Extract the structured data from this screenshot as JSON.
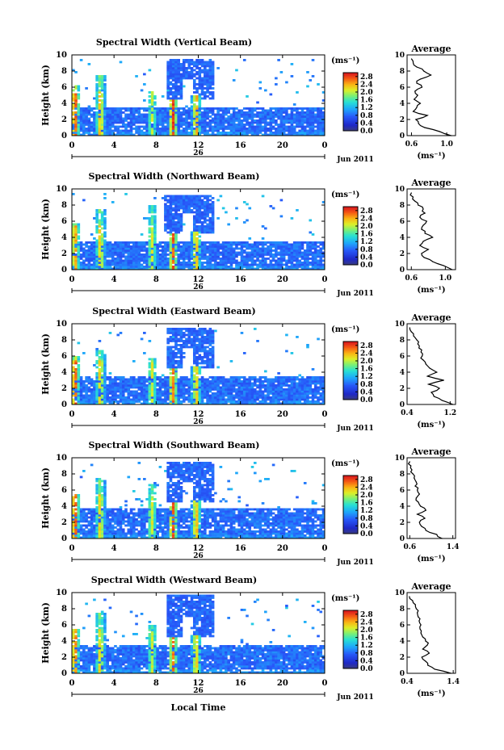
{
  "chart_data": [
    {
      "type": "heatmap",
      "title": "Spectral Width (Vertical Beam)",
      "ylabel": "Height (km)",
      "xticks": [
        "0",
        "4",
        "8",
        "12",
        "16",
        "20",
        "0"
      ],
      "yticks": [
        "0",
        "2",
        "4",
        "6",
        "8",
        "10"
      ],
      "day_label": "26",
      "date_label": "Jun 2011",
      "xlim": [
        0,
        24
      ],
      "ylim": [
        0,
        10
      ],
      "colorbar": {
        "unit": "(ms⁻¹)",
        "ticks": [
          "0.0",
          "0.4",
          "0.8",
          "1.2",
          "1.6",
          "2.0",
          "2.4",
          "2.8"
        ],
        "range": [
          0,
          3.0
        ]
      },
      "plumes": [
        {
          "x": 0.3,
          "top": 6.2,
          "hot": 1.0
        },
        {
          "x": 2.7,
          "top": 7.6,
          "hot": 0.75
        },
        {
          "x": 7.6,
          "top": 5.6,
          "hot": 0.5
        },
        {
          "x": 9.6,
          "top": 4.5,
          "hot": 0.95
        },
        {
          "x": 11.8,
          "top": 5.0,
          "hot": 0.8
        }
      ],
      "cloud": {
        "x0": 9.0,
        "x1": 13.6,
        "y0": 4.5,
        "y1": 9.4
      },
      "cloud_gap_x": [
        10.6,
        11.6
      ],
      "layer_top": 3.4,
      "average": {
        "title": "Average",
        "xlabel": "(ms⁻¹)",
        "xticks": [
          "0.6",
          "1.0"
        ],
        "xlim": [
          0.55,
          1.1
        ],
        "yticks": [
          "0",
          "2",
          "4",
          "6",
          "8",
          "10"
        ],
        "heights": [
          0,
          0.5,
          1,
          1.5,
          2,
          2.5,
          3,
          3.5,
          4,
          4.5,
          5,
          5.5,
          6,
          6.5,
          7,
          7.5,
          8,
          8.5,
          9,
          9.5
        ],
        "values": [
          1.05,
          0.92,
          0.75,
          0.68,
          0.65,
          0.78,
          0.62,
          0.66,
          0.7,
          0.63,
          0.67,
          0.64,
          0.72,
          0.66,
          0.7,
          0.82,
          0.74,
          0.66,
          0.62,
          0.6
        ]
      }
    },
    {
      "type": "heatmap",
      "title": "Spectral Width (Northward Beam)",
      "ylabel": "Height (km)",
      "xticks": [
        "0",
        "4",
        "8",
        "12",
        "16",
        "20",
        "0"
      ],
      "yticks": [
        "0",
        "2",
        "4",
        "6",
        "8",
        "10"
      ],
      "day_label": "26",
      "date_label": "Jun 2011",
      "xlim": [
        0,
        24
      ],
      "ylim": [
        0,
        10
      ],
      "colorbar": {
        "unit": "(ms⁻¹)",
        "ticks": [
          "0.0",
          "0.4",
          "0.8",
          "1.2",
          "1.6",
          "2.0",
          "2.4",
          "2.8"
        ],
        "range": [
          0,
          3.0
        ]
      },
      "plumes": [
        {
          "x": 0.3,
          "top": 5.8,
          "hot": 0.85
        },
        {
          "x": 2.7,
          "top": 7.6,
          "hot": 0.7
        },
        {
          "x": 7.6,
          "top": 8.0,
          "hot": 0.55
        },
        {
          "x": 9.6,
          "top": 4.5,
          "hot": 0.9
        },
        {
          "x": 11.8,
          "top": 4.8,
          "hot": 0.75
        }
      ],
      "cloud": {
        "x0": 8.8,
        "x1": 13.6,
        "y0": 4.6,
        "y1": 9.2
      },
      "cloud_gap_x": [
        10.6,
        11.4
      ],
      "layer_top": 3.5,
      "average": {
        "title": "Average",
        "xlabel": "(ms⁻¹)",
        "xticks": [
          "0.6",
          "1.0"
        ],
        "xlim": [
          0.55,
          1.12
        ],
        "yticks": [
          "0",
          "2",
          "4",
          "6",
          "8",
          "10"
        ],
        "heights": [
          0,
          0.5,
          1,
          1.5,
          2,
          2.5,
          3,
          3.5,
          4,
          4.5,
          5,
          5.5,
          6,
          6.5,
          7,
          7.5,
          8,
          8.5,
          9,
          9.5
        ],
        "values": [
          1.08,
          0.98,
          0.85,
          0.75,
          0.72,
          0.8,
          0.7,
          0.74,
          0.85,
          0.76,
          0.72,
          0.74,
          0.78,
          0.7,
          0.76,
          0.74,
          0.68,
          0.64,
          0.62,
          0.6
        ]
      }
    },
    {
      "type": "heatmap",
      "title": "Spectral Width (Eastward Beam)",
      "ylabel": "Height (km)",
      "xticks": [
        "0",
        "4",
        "8",
        "12",
        "16",
        "20",
        "0"
      ],
      "yticks": [
        "0",
        "2",
        "4",
        "6",
        "8",
        "10"
      ],
      "day_label": "26",
      "date_label": "Jun 2011",
      "xlim": [
        0,
        24
      ],
      "ylim": [
        0,
        10
      ],
      "colorbar": {
        "unit": "(ms⁻¹)",
        "ticks": [
          "0.0",
          "0.4",
          "0.8",
          "1.2",
          "1.6",
          "2.0",
          "2.4",
          "2.8"
        ],
        "range": [
          0,
          3.0
        ]
      },
      "plumes": [
        {
          "x": 0.3,
          "top": 6.0,
          "hot": 1.0
        },
        {
          "x": 2.7,
          "top": 6.8,
          "hot": 0.7
        },
        {
          "x": 7.6,
          "top": 5.8,
          "hot": 0.55
        },
        {
          "x": 9.6,
          "top": 4.5,
          "hot": 0.85
        },
        {
          "x": 11.8,
          "top": 4.8,
          "hot": 0.7
        }
      ],
      "cloud": {
        "x0": 9.0,
        "x1": 13.6,
        "y0": 4.6,
        "y1": 9.4
      },
      "cloud_gap_x": [
        10.6,
        11.6
      ],
      "layer_top": 3.6,
      "average": {
        "title": "Average",
        "xlabel": "(ms⁻¹)",
        "xticks": [
          "0.4",
          "1.2"
        ],
        "xlim": [
          0.4,
          1.3
        ],
        "yticks": [
          "0",
          "2",
          "4",
          "6",
          "8",
          "10"
        ],
        "heights": [
          0,
          0.5,
          1,
          1.5,
          2,
          2.5,
          3,
          3.5,
          4,
          4.5,
          5,
          5.5,
          6,
          6.5,
          7,
          7.5,
          8,
          8.5,
          9,
          9.5
        ],
        "values": [
          1.25,
          1.05,
          0.9,
          0.85,
          1.0,
          0.8,
          1.08,
          0.78,
          0.95,
          0.82,
          0.75,
          0.7,
          0.68,
          0.66,
          0.62,
          0.6,
          0.58,
          0.52,
          0.48,
          0.45
        ]
      }
    },
    {
      "type": "heatmap",
      "title": "Spectral Width (Southward Beam)",
      "ylabel": "Height (km)",
      "xticks": [
        "0",
        "4",
        "8",
        "12",
        "16",
        "20",
        "0"
      ],
      "yticks": [
        "0",
        "2",
        "4",
        "6",
        "8",
        "10"
      ],
      "day_label": "26",
      "date_label": "Jun 2011",
      "xlim": [
        0,
        24
      ],
      "ylim": [
        0,
        10
      ],
      "colorbar": {
        "unit": "(ms⁻¹)",
        "ticks": [
          "0.0",
          "0.4",
          "0.8",
          "1.2",
          "1.6",
          "2.0",
          "2.4",
          "2.8"
        ],
        "range": [
          0,
          3.0
        ]
      },
      "plumes": [
        {
          "x": 0.3,
          "top": 5.6,
          "hot": 1.0
        },
        {
          "x": 2.7,
          "top": 7.6,
          "hot": 0.7
        },
        {
          "x": 7.6,
          "top": 6.8,
          "hot": 0.55
        },
        {
          "x": 9.6,
          "top": 4.5,
          "hot": 0.9
        },
        {
          "x": 11.8,
          "top": 4.8,
          "hot": 0.75
        }
      ],
      "cloud": {
        "x0": 9.0,
        "x1": 13.6,
        "y0": 4.4,
        "y1": 9.6
      },
      "cloud_gap_x": [
        10.6,
        11.6
      ],
      "layer_top": 3.8,
      "average": {
        "title": "Average",
        "xlabel": "(ms⁻¹)",
        "xticks": [
          "0.6",
          "1.4"
        ],
        "xlim": [
          0.55,
          1.45
        ],
        "yticks": [
          "0",
          "2",
          "4",
          "6",
          "8",
          "10"
        ],
        "heights": [
          0,
          0.5,
          1,
          1.5,
          2,
          2.5,
          3,
          3.5,
          4,
          4.5,
          5,
          5.5,
          6,
          6.5,
          7,
          7.5,
          8,
          8.5,
          9,
          9.5
        ],
        "values": [
          1.2,
          1.1,
          0.9,
          0.82,
          0.78,
          0.88,
          0.74,
          0.9,
          0.8,
          0.76,
          0.72,
          0.78,
          0.74,
          0.7,
          0.72,
          0.68,
          0.66,
          0.64,
          0.62,
          0.6
        ]
      }
    },
    {
      "type": "heatmap",
      "title": "Spectral Width (Westward Beam)",
      "ylabel": "Height (km)",
      "xlabel": "Local Time",
      "xticks": [
        "0",
        "4",
        "8",
        "12",
        "16",
        "20",
        "0"
      ],
      "yticks": [
        "0",
        "2",
        "4",
        "6",
        "8",
        "10"
      ],
      "day_label": "26",
      "date_label": "Jun 2011",
      "xlim": [
        0,
        24
      ],
      "ylim": [
        0,
        10
      ],
      "colorbar": {
        "unit": "(ms⁻¹)",
        "ticks": [
          "0.0",
          "0.4",
          "0.8",
          "1.2",
          "1.6",
          "2.0",
          "2.4",
          "2.8"
        ],
        "range": [
          0,
          3.0
        ]
      },
      "plumes": [
        {
          "x": 0.3,
          "top": 5.6,
          "hot": 0.9
        },
        {
          "x": 2.7,
          "top": 7.6,
          "hot": 0.7
        },
        {
          "x": 7.6,
          "top": 6.0,
          "hot": 0.55
        },
        {
          "x": 9.6,
          "top": 4.5,
          "hot": 0.85
        },
        {
          "x": 11.8,
          "top": 4.8,
          "hot": 0.7
        }
      ],
      "cloud": {
        "x0": 9.0,
        "x1": 13.6,
        "y0": 4.4,
        "y1": 9.8
      },
      "cloud_gap_x": [
        10.6,
        11.6
      ],
      "layer_top": 3.6,
      "average": {
        "title": "Average",
        "xlabel": "(ms⁻¹)",
        "xticks": [
          "0.4",
          "1.4"
        ],
        "xlim": [
          0.4,
          1.45
        ],
        "yticks": [
          "0",
          "2",
          "4",
          "6",
          "8",
          "10"
        ],
        "heights": [
          0,
          0.5,
          1,
          1.5,
          2,
          2.5,
          3,
          3.5,
          4,
          4.5,
          5,
          5.5,
          6,
          6.5,
          7,
          7.5,
          8,
          8.5,
          9,
          9.5
        ],
        "values": [
          1.35,
          1.0,
          0.85,
          0.8,
          0.72,
          0.88,
          0.74,
          0.84,
          0.8,
          0.74,
          0.7,
          0.68,
          0.7,
          0.66,
          0.64,
          0.62,
          0.6,
          0.58,
          0.52,
          0.45
        ]
      }
    }
  ]
}
